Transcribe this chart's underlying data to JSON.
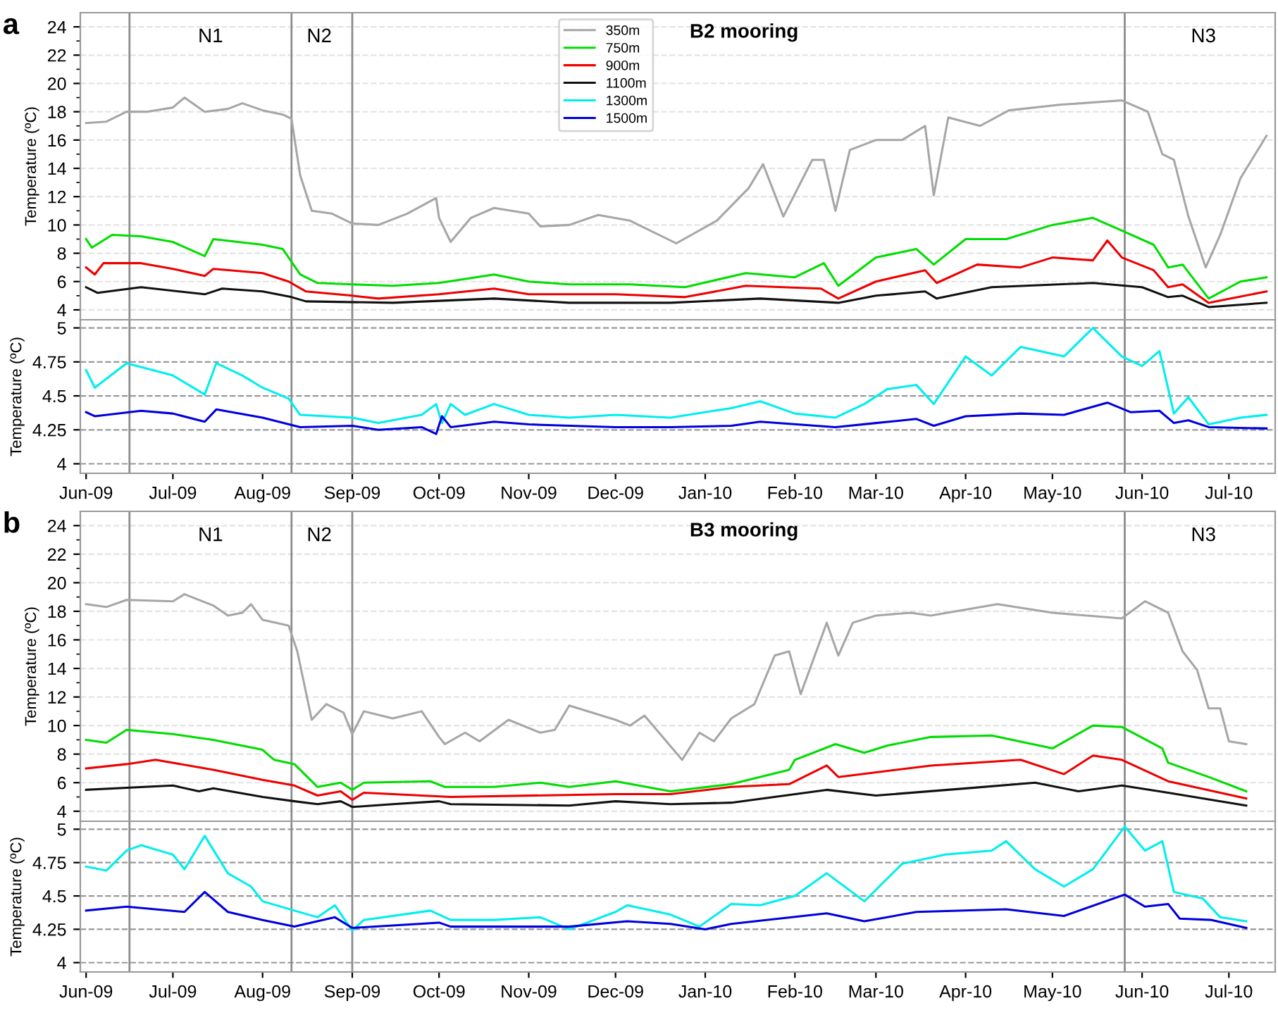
{
  "chart_data": [
    {
      "type": "line",
      "title": "B2 mooring",
      "ylabel": "Temperature (ºC)",
      "annotations": [
        "a",
        "N1",
        "N2",
        "N3"
      ],
      "xlim": [
        "2009-05-30",
        "2010-07-17"
      ],
      "ylim": [
        3.3,
        25
      ],
      "yticks": [
        4,
        6,
        8,
        10,
        12,
        14,
        16,
        18,
        20,
        22,
        24
      ],
      "tick_labels": "y",
      "grid": "y",
      "legend": "top",
      "line_style": "solid",
      "marker": "none",
      "ref_lines": [
        {
          "axis": "x",
          "value": "2009-06-16",
          "color": "#8c8c8c"
        },
        {
          "axis": "x",
          "value": "2009-08-11",
          "color": "#8c8c8c"
        },
        {
          "axis": "x",
          "value": "2009-09-01",
          "color": "#8c8c8c"
        },
        {
          "axis": "x",
          "value": "2010-05-26",
          "color": "#8c8c8c"
        }
      ],
      "series": [
        {
          "name": "350m",
          "color": "#a6a6a6",
          "x": [
            "2009-06-01",
            "2009-06-08",
            "2009-06-15",
            "2009-06-22",
            "2009-07-01",
            "2009-07-05",
            "2009-07-12",
            "2009-07-20",
            "2009-07-25",
            "2009-08-01",
            "2009-08-08",
            "2009-08-11",
            "2009-08-14",
            "2009-08-18",
            "2009-08-25",
            "2009-09-01",
            "2009-09-10",
            "2009-09-20",
            "2009-09-30",
            "2009-10-01",
            "2009-10-05",
            "2009-10-12",
            "2009-10-20",
            "2009-11-01",
            "2009-11-05",
            "2009-11-15",
            "2009-11-25",
            "2009-12-06",
            "2009-12-22",
            "2010-01-05",
            "2010-01-16",
            "2010-01-21",
            "2010-01-28",
            "2010-02-07",
            "2010-02-11",
            "2010-02-15",
            "2010-02-20",
            "2010-03-01",
            "2010-03-10",
            "2010-03-18",
            "2010-03-21",
            "2010-03-26",
            "2010-04-06",
            "2010-04-16",
            "2010-05-04",
            "2010-05-25",
            "2010-06-03",
            "2010-06-08",
            "2010-06-12",
            "2010-06-17",
            "2010-06-23",
            "2010-06-28",
            "2010-07-05",
            "2010-07-14"
          ],
          "values": [
            17.2,
            17.3,
            18.0,
            18.0,
            18.3,
            19.0,
            18.0,
            18.2,
            18.6,
            18.1,
            17.8,
            17.5,
            13.5,
            11.0,
            10.8,
            10.1,
            10.0,
            10.8,
            11.9,
            10.5,
            8.8,
            10.5,
            11.2,
            10.8,
            9.9,
            10.0,
            10.7,
            10.3,
            8.7,
            10.3,
            12.6,
            14.3,
            10.6,
            14.6,
            14.6,
            11.0,
            15.3,
            16.0,
            16.0,
            17.0,
            12.1,
            17.6,
            17.0,
            18.1,
            18.5,
            18.8,
            18.0,
            15.0,
            14.6,
            10.6,
            7.0,
            9.3,
            13.3,
            16.3
          ]
        },
        {
          "name": "750m",
          "color": "#00dd00",
          "x": [
            "2009-06-01",
            "2009-06-03",
            "2009-06-10",
            "2009-06-20",
            "2009-07-01",
            "2009-07-12",
            "2009-07-15",
            "2009-08-01",
            "2009-08-08",
            "2009-08-14",
            "2009-08-20",
            "2009-09-01",
            "2009-09-15",
            "2009-10-01",
            "2009-10-20",
            "2009-11-01",
            "2009-11-15",
            "2009-12-06",
            "2009-12-25",
            "2010-01-15",
            "2010-02-01",
            "2010-02-11",
            "2010-02-16",
            "2010-03-01",
            "2010-03-15",
            "2010-03-21",
            "2010-04-01",
            "2010-04-15",
            "2010-05-01",
            "2010-05-15",
            "2010-05-25",
            "2010-06-05",
            "2010-06-10",
            "2010-06-15",
            "2010-06-24",
            "2010-07-05",
            "2010-07-14"
          ],
          "values": [
            9.0,
            8.4,
            9.3,
            9.2,
            8.8,
            7.8,
            9.0,
            8.6,
            8.3,
            6.5,
            5.9,
            5.8,
            5.7,
            5.9,
            6.5,
            6.0,
            5.8,
            5.8,
            5.6,
            6.6,
            6.3,
            7.3,
            5.7,
            7.7,
            8.3,
            7.2,
            9.0,
            9.0,
            10.0,
            10.5,
            9.6,
            8.6,
            7.0,
            7.2,
            4.8,
            6.0,
            6.3
          ]
        },
        {
          "name": "900m",
          "color": "#ee0000",
          "x": [
            "2009-06-01",
            "2009-06-04",
            "2009-06-07",
            "2009-06-20",
            "2009-07-01",
            "2009-07-12",
            "2009-07-15",
            "2009-08-01",
            "2009-08-10",
            "2009-08-16",
            "2009-09-01",
            "2009-09-10",
            "2009-10-01",
            "2009-10-20",
            "2009-11-01",
            "2009-12-01",
            "2009-12-25",
            "2010-01-15",
            "2010-02-10",
            "2010-02-16",
            "2010-03-01",
            "2010-03-18",
            "2010-03-22",
            "2010-04-05",
            "2010-04-20",
            "2010-05-01",
            "2010-05-15",
            "2010-05-20",
            "2010-05-25",
            "2010-06-05",
            "2010-06-10",
            "2010-06-15",
            "2010-06-24",
            "2010-07-14"
          ],
          "values": [
            7.0,
            6.5,
            7.3,
            7.3,
            6.9,
            6.4,
            6.9,
            6.6,
            6.0,
            5.3,
            5.0,
            4.8,
            5.1,
            5.5,
            5.1,
            5.1,
            4.9,
            5.7,
            5.5,
            4.8,
            6.0,
            6.8,
            5.9,
            7.2,
            7.0,
            7.7,
            7.5,
            8.9,
            7.7,
            6.8,
            5.6,
            5.8,
            4.5,
            5.3
          ]
        },
        {
          "name": "1100m",
          "color": "#111111",
          "x": [
            "2009-06-01",
            "2009-06-05",
            "2009-06-20",
            "2009-07-12",
            "2009-07-18",
            "2009-08-01",
            "2009-08-11",
            "2009-08-16",
            "2009-09-15",
            "2009-10-20",
            "2009-11-15",
            "2009-12-20",
            "2010-01-20",
            "2010-02-16",
            "2010-03-01",
            "2010-03-18",
            "2010-03-22",
            "2010-04-10",
            "2010-05-15",
            "2010-06-01",
            "2010-06-10",
            "2010-06-15",
            "2010-06-24",
            "2010-07-14"
          ],
          "values": [
            5.6,
            5.2,
            5.6,
            5.1,
            5.5,
            5.3,
            4.9,
            4.6,
            4.5,
            4.8,
            4.5,
            4.5,
            4.8,
            4.5,
            5.0,
            5.3,
            4.8,
            5.6,
            5.9,
            5.6,
            4.9,
            5.0,
            4.2,
            4.5
          ]
        }
      ]
    },
    {
      "type": "line",
      "ylabel": "Temperature (ºC)",
      "xlim": [
        "2009-05-30",
        "2010-07-17"
      ],
      "ylim": [
        3.93,
        5.06
      ],
      "yticks": [
        4,
        4.25,
        4.5,
        4.75,
        5
      ],
      "xticks": [
        {
          "value": "2009-06-01",
          "label": "Jun-09"
        },
        {
          "value": "2009-07-01",
          "label": "Jul-09"
        },
        {
          "value": "2009-08-01",
          "label": "Aug-09"
        },
        {
          "value": "2009-09-01",
          "label": "Sep-09"
        },
        {
          "value": "2009-10-01",
          "label": "Oct-09"
        },
        {
          "value": "2009-11-01",
          "label": "Nov-09"
        },
        {
          "value": "2009-12-01",
          "label": "Dec-09"
        },
        {
          "value": "2010-01-01",
          "label": "Jan-10"
        },
        {
          "value": "2010-02-01",
          "label": "Feb-10"
        },
        {
          "value": "2010-03-01",
          "label": "Mar-10"
        },
        {
          "value": "2010-04-01",
          "label": "Apr-10"
        },
        {
          "value": "2010-05-01",
          "label": "May-10"
        },
        {
          "value": "2010-06-01",
          "label": "Jun-10"
        },
        {
          "value": "2010-07-01",
          "label": "Jul-10"
        }
      ],
      "grid": "y",
      "legend": "top",
      "line_style": "solid",
      "marker": "none",
      "ref_lines": [
        {
          "axis": "x",
          "value": "2009-06-16",
          "color": "#8c8c8c"
        },
        {
          "axis": "x",
          "value": "2009-08-11",
          "color": "#8c8c8c"
        },
        {
          "axis": "x",
          "value": "2009-09-01",
          "color": "#8c8c8c"
        },
        {
          "axis": "x",
          "value": "2010-05-26",
          "color": "#8c8c8c"
        }
      ],
      "series": [
        {
          "name": "1300m",
          "color": "#00eeee",
          "x": [
            "2009-06-01",
            "2009-06-04",
            "2009-06-15",
            "2009-07-01",
            "2009-07-12",
            "2009-07-16",
            "2009-07-25",
            "2009-08-01",
            "2009-08-10",
            "2009-08-14",
            "2009-09-01",
            "2009-09-10",
            "2009-09-25",
            "2009-09-30",
            "2009-10-02",
            "2009-10-05",
            "2009-10-10",
            "2009-10-20",
            "2009-11-01",
            "2009-11-15",
            "2009-12-01",
            "2009-12-20",
            "2010-01-10",
            "2010-01-20",
            "2010-02-01",
            "2010-02-15",
            "2010-02-25",
            "2010-03-05",
            "2010-03-15",
            "2010-03-21",
            "2010-04-01",
            "2010-04-10",
            "2010-04-20",
            "2010-05-05",
            "2010-05-15",
            "2010-05-25",
            "2010-06-01",
            "2010-06-07",
            "2010-06-12",
            "2010-06-17",
            "2010-06-24",
            "2010-07-05",
            "2010-07-14"
          ],
          "values": [
            4.69,
            4.56,
            4.74,
            4.65,
            4.51,
            4.74,
            4.65,
            4.56,
            4.48,
            4.36,
            4.34,
            4.3,
            4.36,
            4.44,
            4.3,
            4.44,
            4.36,
            4.44,
            4.36,
            4.34,
            4.36,
            4.34,
            4.41,
            4.46,
            4.37,
            4.34,
            4.44,
            4.55,
            4.58,
            4.44,
            4.79,
            4.65,
            4.86,
            4.79,
            5.0,
            4.79,
            4.72,
            4.83,
            4.37,
            4.49,
            4.29,
            4.34,
            4.36
          ]
        },
        {
          "name": "1500m",
          "color": "#0000dd",
          "x": [
            "2009-06-01",
            "2009-06-04",
            "2009-06-20",
            "2009-07-01",
            "2009-07-12",
            "2009-07-16",
            "2009-08-01",
            "2009-08-14",
            "2009-09-01",
            "2009-09-10",
            "2009-09-25",
            "2009-09-30",
            "2009-10-02",
            "2009-10-05",
            "2009-10-20",
            "2009-11-01",
            "2009-12-01",
            "2009-12-20",
            "2010-01-10",
            "2010-01-20",
            "2010-02-15",
            "2010-03-01",
            "2010-03-15",
            "2010-03-21",
            "2010-04-01",
            "2010-04-20",
            "2010-05-05",
            "2010-05-20",
            "2010-05-28",
            "2010-06-07",
            "2010-06-12",
            "2010-06-17",
            "2010-06-24",
            "2010-07-14"
          ],
          "values": [
            4.38,
            4.35,
            4.39,
            4.37,
            4.31,
            4.4,
            4.34,
            4.27,
            4.28,
            4.25,
            4.27,
            4.22,
            4.35,
            4.27,
            4.31,
            4.29,
            4.27,
            4.27,
            4.28,
            4.31,
            4.27,
            4.3,
            4.33,
            4.28,
            4.35,
            4.37,
            4.36,
            4.45,
            4.38,
            4.39,
            4.3,
            4.32,
            4.27,
            4.26
          ]
        }
      ]
    },
    {
      "type": "line",
      "title": "B3 mooring",
      "ylabel": "Temperature (ºC)",
      "annotations": [
        "b",
        "N1",
        "N2",
        "N3"
      ],
      "xlim": [
        "2009-05-30",
        "2010-07-17"
      ],
      "ylim": [
        3.3,
        25
      ],
      "yticks": [
        4,
        6,
        8,
        10,
        12,
        14,
        16,
        18,
        20,
        22,
        24
      ],
      "tick_labels": "y",
      "grid": "y",
      "line_style": "solid",
      "marker": "none",
      "ref_lines": [
        {
          "axis": "x",
          "value": "2009-06-16",
          "color": "#8c8c8c"
        },
        {
          "axis": "x",
          "value": "2009-08-11",
          "color": "#8c8c8c"
        },
        {
          "axis": "x",
          "value": "2009-09-01",
          "color": "#8c8c8c"
        },
        {
          "axis": "x",
          "value": "2010-05-26",
          "color": "#8c8c8c"
        }
      ],
      "series": [
        {
          "color": "#a6a6a6",
          "x": [
            "2009-06-01",
            "2009-06-08",
            "2009-06-15",
            "2009-07-01",
            "2009-07-05",
            "2009-07-15",
            "2009-07-20",
            "2009-07-25",
            "2009-07-28",
            "2009-08-01",
            "2009-08-10",
            "2009-08-13",
            "2009-08-18",
            "2009-08-23",
            "2009-08-29",
            "2009-09-01",
            "2009-09-05",
            "2009-09-15",
            "2009-09-25",
            "2009-10-01",
            "2009-10-03",
            "2009-10-10",
            "2009-10-15",
            "2009-10-25",
            "2009-11-05",
            "2009-11-10",
            "2009-11-15",
            "2009-12-01",
            "2009-12-06",
            "2009-12-11",
            "2009-12-24",
            "2009-12-30",
            "2010-01-04",
            "2010-01-10",
            "2010-01-18",
            "2010-01-25",
            "2010-01-30",
            "2010-02-03",
            "2010-02-12",
            "2010-02-16",
            "2010-02-21",
            "2010-03-01",
            "2010-03-13",
            "2010-03-20",
            "2010-04-12",
            "2010-05-01",
            "2010-05-25",
            "2010-06-02",
            "2010-06-10",
            "2010-06-15",
            "2010-06-20",
            "2010-06-24",
            "2010-06-28",
            "2010-07-01",
            "2010-07-07"
          ],
          "values": [
            18.5,
            18.3,
            18.8,
            18.7,
            19.2,
            18.4,
            17.7,
            17.9,
            18.5,
            17.4,
            17.0,
            15.2,
            10.4,
            11.5,
            10.9,
            9.4,
            11.0,
            10.5,
            11.0,
            9.2,
            8.7,
            9.5,
            8.9,
            10.4,
            9.5,
            9.7,
            11.4,
            10.4,
            10.0,
            10.7,
            7.6,
            9.5,
            8.9,
            10.5,
            11.5,
            14.9,
            15.2,
            12.2,
            17.2,
            14.9,
            17.2,
            17.7,
            17.9,
            17.7,
            18.5,
            17.9,
            17.5,
            18.7,
            17.9,
            15.2,
            13.9,
            11.2,
            11.2,
            8.9,
            8.7
          ]
        },
        {
          "color": "#00dd00",
          "x": [
            "2009-06-01",
            "2009-06-08",
            "2009-06-15",
            "2009-07-01",
            "2009-07-15",
            "2009-08-01",
            "2009-08-05",
            "2009-08-12",
            "2009-08-20",
            "2009-08-28",
            "2009-09-01",
            "2009-09-05",
            "2009-09-28",
            "2009-10-03",
            "2009-10-20",
            "2009-11-05",
            "2009-11-15",
            "2009-12-01",
            "2009-12-20",
            "2010-01-10",
            "2010-01-30",
            "2010-02-01",
            "2010-02-15",
            "2010-02-25",
            "2010-03-05",
            "2010-03-20",
            "2010-04-10",
            "2010-05-01",
            "2010-05-15",
            "2010-05-25",
            "2010-06-08",
            "2010-06-10",
            "2010-06-24",
            "2010-07-07"
          ],
          "values": [
            9.0,
            8.8,
            9.7,
            9.4,
            9.0,
            8.3,
            7.6,
            7.3,
            5.7,
            6.0,
            5.5,
            6.0,
            6.1,
            5.7,
            5.7,
            6.0,
            5.7,
            6.1,
            5.4,
            5.9,
            6.9,
            7.6,
            8.7,
            8.1,
            8.6,
            9.2,
            9.3,
            8.4,
            10.0,
            9.9,
            8.4,
            7.4,
            6.4,
            5.4
          ]
        },
        {
          "color": "#ee0000",
          "x": [
            "2009-06-01",
            "2009-06-15",
            "2009-06-25",
            "2009-07-15",
            "2009-08-01",
            "2009-08-12",
            "2009-08-20",
            "2009-08-28",
            "2009-09-01",
            "2009-09-05",
            "2009-10-05",
            "2009-12-01",
            "2009-12-20",
            "2010-01-10",
            "2010-01-30",
            "2010-02-12",
            "2010-02-16",
            "2010-03-20",
            "2010-04-20",
            "2010-05-05",
            "2010-05-15",
            "2010-05-25",
            "2010-06-10",
            "2010-07-07"
          ],
          "values": [
            7.0,
            7.3,
            7.6,
            6.9,
            6.2,
            5.8,
            5.1,
            5.4,
            4.8,
            5.3,
            5.0,
            5.2,
            5.2,
            5.7,
            5.9,
            7.2,
            6.4,
            7.2,
            7.6,
            6.6,
            7.9,
            7.6,
            6.1,
            4.9
          ]
        },
        {
          "color": "#111111",
          "x": [
            "2009-06-01",
            "2009-07-01",
            "2009-07-10",
            "2009-07-15",
            "2009-08-01",
            "2009-08-12",
            "2009-08-20",
            "2009-08-28",
            "2009-09-01",
            "2009-09-15",
            "2009-10-01",
            "2009-10-05",
            "2009-11-15",
            "2009-12-01",
            "2009-12-20",
            "2010-01-10",
            "2010-02-12",
            "2010-03-01",
            "2010-04-01",
            "2010-04-25",
            "2010-05-10",
            "2010-05-25",
            "2010-06-10",
            "2010-07-07"
          ],
          "values": [
            5.5,
            5.8,
            5.4,
            5.6,
            5.0,
            4.7,
            4.5,
            4.7,
            4.3,
            4.5,
            4.7,
            4.5,
            4.4,
            4.7,
            4.5,
            4.6,
            5.5,
            5.1,
            5.6,
            6.0,
            5.4,
            5.8,
            5.3,
            4.4
          ]
        }
      ]
    },
    {
      "type": "line",
      "ylabel": "Temperature (ºC)",
      "xlim": [
        "2009-05-30",
        "2010-07-17"
      ],
      "ylim": [
        3.93,
        5.06
      ],
      "yticks": [
        4,
        4.25,
        4.5,
        4.75,
        5
      ],
      "xticks": [
        {
          "value": "2009-06-01",
          "label": "Jun-09"
        },
        {
          "value": "2009-07-01",
          "label": "Jul-09"
        },
        {
          "value": "2009-08-01",
          "label": "Aug-09"
        },
        {
          "value": "2009-09-01",
          "label": "Sep-09"
        },
        {
          "value": "2009-10-01",
          "label": "Oct-09"
        },
        {
          "value": "2009-11-01",
          "label": "Nov-09"
        },
        {
          "value": "2009-12-01",
          "label": "Dec-09"
        },
        {
          "value": "2010-01-01",
          "label": "Jan-10"
        },
        {
          "value": "2010-02-01",
          "label": "Feb-10"
        },
        {
          "value": "2010-03-01",
          "label": "Mar-10"
        },
        {
          "value": "2010-04-01",
          "label": "Apr-10"
        },
        {
          "value": "2010-05-01",
          "label": "May-10"
        },
        {
          "value": "2010-06-01",
          "label": "Jun-10"
        },
        {
          "value": "2010-07-01",
          "label": "Jul-10"
        }
      ],
      "grid": "y",
      "line_style": "solid",
      "marker": "none",
      "ref_lines": [
        {
          "axis": "x",
          "value": "2009-06-16",
          "color": "#8c8c8c"
        },
        {
          "axis": "x",
          "value": "2009-08-11",
          "color": "#8c8c8c"
        },
        {
          "axis": "x",
          "value": "2009-09-01",
          "color": "#8c8c8c"
        },
        {
          "axis": "x",
          "value": "2010-05-26",
          "color": "#8c8c8c"
        }
      ],
      "series": [
        {
          "color": "#00eeee",
          "x": [
            "2009-06-01",
            "2009-06-08",
            "2009-06-15",
            "2009-06-20",
            "2009-07-01",
            "2009-07-05",
            "2009-07-12",
            "2009-07-20",
            "2009-07-28",
            "2009-08-01",
            "2009-08-12",
            "2009-08-20",
            "2009-08-26",
            "2009-09-01",
            "2009-09-05",
            "2009-09-28",
            "2009-10-05",
            "2009-10-20",
            "2009-11-05",
            "2009-11-15",
            "2009-12-01",
            "2009-12-05",
            "2009-12-20",
            "2009-12-30",
            "2010-01-10",
            "2010-01-20",
            "2010-02-01",
            "2010-02-12",
            "2010-02-25",
            "2010-03-10",
            "2010-03-25",
            "2010-04-10",
            "2010-04-15",
            "2010-04-25",
            "2010-05-05",
            "2010-05-15",
            "2010-05-26",
            "2010-06-02",
            "2010-06-08",
            "2010-06-12",
            "2010-06-22",
            "2010-06-28",
            "2010-07-07"
          ],
          "values": [
            4.72,
            4.69,
            4.84,
            4.88,
            4.81,
            4.7,
            4.95,
            4.67,
            4.57,
            4.46,
            4.39,
            4.34,
            4.43,
            4.24,
            4.32,
            4.39,
            4.32,
            4.32,
            4.34,
            4.25,
            4.38,
            4.43,
            4.36,
            4.27,
            4.44,
            4.43,
            4.5,
            4.67,
            4.46,
            4.74,
            4.81,
            4.84,
            4.91,
            4.7,
            4.57,
            4.7,
            5.02,
            4.84,
            4.91,
            4.53,
            4.48,
            4.34,
            4.31
          ]
        },
        {
          "color": "#0000dd",
          "x": [
            "2009-06-01",
            "2009-06-15",
            "2009-07-05",
            "2009-07-12",
            "2009-07-20",
            "2009-08-01",
            "2009-08-12",
            "2009-08-26",
            "2009-09-01",
            "2009-10-01",
            "2009-10-05",
            "2009-11-15",
            "2009-12-05",
            "2009-12-20",
            "2010-01-01",
            "2010-01-10",
            "2010-02-12",
            "2010-02-25",
            "2010-03-15",
            "2010-04-15",
            "2010-05-05",
            "2010-05-26",
            "2010-06-02",
            "2010-06-10",
            "2010-06-14",
            "2010-06-25",
            "2010-07-07"
          ],
          "values": [
            4.39,
            4.42,
            4.38,
            4.53,
            4.38,
            4.32,
            4.27,
            4.34,
            4.26,
            4.3,
            4.27,
            4.27,
            4.31,
            4.29,
            4.25,
            4.29,
            4.37,
            4.31,
            4.38,
            4.4,
            4.35,
            4.51,
            4.42,
            4.44,
            4.33,
            4.32,
            4.26
          ]
        }
      ]
    }
  ]
}
